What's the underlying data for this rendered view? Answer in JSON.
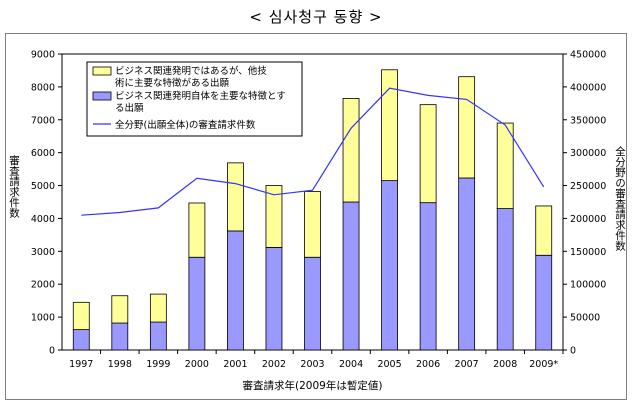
{
  "page": {
    "title": "< 심사청구 동향 >"
  },
  "colors": {
    "upper": "#ffff99",
    "lower": "#9999ff",
    "line": "#3333ff",
    "axis": "#000000"
  },
  "chart_data": {
    "type": "bar",
    "stacked": true,
    "categories": [
      "1997",
      "1998",
      "1999",
      "2000",
      "2001",
      "2002",
      "2003",
      "2004",
      "2005",
      "2006",
      "2007",
      "2008",
      "2009*"
    ],
    "series": [
      {
        "name": "ビジネス関連発明自体を主要な特徴とする出願",
        "axis": "left",
        "values": [
          620,
          820,
          850,
          2820,
          3620,
          3120,
          2820,
          4500,
          5150,
          4480,
          5230,
          4300,
          2880
        ]
      },
      {
        "name": "ビジネス関連発明ではあるが、他技術に主要な特徴がある出願",
        "axis": "left",
        "values": [
          830,
          830,
          850,
          1650,
          2070,
          1880,
          2000,
          3150,
          3370,
          2980,
          3080,
          2600,
          1500
        ]
      },
      {
        "name": "全分野(出願全体)の審査請求件数",
        "type": "line",
        "axis": "right",
        "values": [
          205000,
          209000,
          216000,
          261000,
          253000,
          236000,
          243000,
          337000,
          398000,
          387000,
          381000,
          342000,
          248000
        ]
      }
    ],
    "legend": [
      "ビジネス関連発明ではあるが、他技術に主要な特徴がある出願",
      "ビジネス関連発明自体を主要な特徴とする出願",
      "全分野(出願全体)の審査請求件数"
    ],
    "legend_position": "top-left",
    "xlabel": "審査請求年(2009年は暫定値)",
    "ylabel": "審査請求件数",
    "y2label": "全分野の審査請求件数",
    "ylim": [
      0,
      9000
    ],
    "y2lim": [
      0,
      450000
    ],
    "yticks": [
      "0",
      "1000",
      "2000",
      "3000",
      "4000",
      "5000",
      "6000",
      "7000",
      "8000",
      "9000"
    ],
    "y2ticks": [
      "0",
      "50000",
      "100000",
      "150000",
      "200000",
      "250000",
      "300000",
      "350000",
      "400000",
      "450000"
    ]
  }
}
